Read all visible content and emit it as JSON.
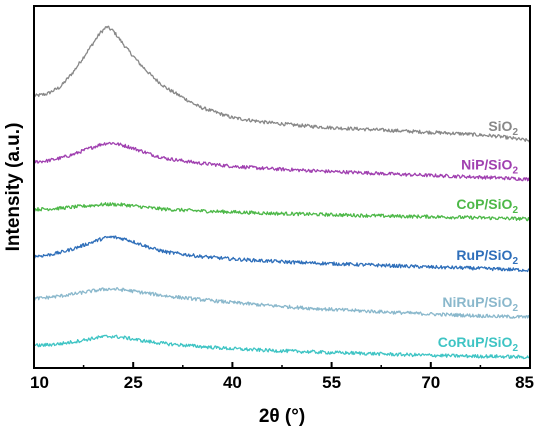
{
  "chart_data": {
    "type": "line",
    "xlabel": "2θ (°)",
    "ylabel": "Intensity (a.u.)",
    "xlim": [
      10,
      85
    ],
    "xticks": [
      10,
      25,
      40,
      55,
      70,
      85
    ],
    "yticks_shown": false,
    "grid": false,
    "legend": "inline-right",
    "stacked_offset": true,
    "x": [
      10,
      12,
      14,
      16,
      18,
      20,
      21,
      22,
      24,
      26,
      28,
      30,
      35,
      40,
      45,
      50,
      55,
      60,
      65,
      70,
      75,
      80,
      85
    ],
    "series": [
      {
        "name": "SiO2",
        "label_main": "SiO",
        "label_sub": "2",
        "color": "#888888",
        "values": [
          7.06,
          7.12,
          7.3,
          7.7,
          8.2,
          8.7,
          8.86,
          8.75,
          8.3,
          7.9,
          7.55,
          7.27,
          6.78,
          6.5,
          6.38,
          6.3,
          6.24,
          6.2,
          6.16,
          6.12,
          6.08,
          6.02,
          5.9
        ]
      },
      {
        "name": "NiP/SiO2",
        "label_main": "NiP/SiO",
        "label_sub": "2",
        "color": "#a040b0",
        "values": [
          5.35,
          5.38,
          5.45,
          5.55,
          5.68,
          5.8,
          5.84,
          5.84,
          5.76,
          5.65,
          5.53,
          5.44,
          5.32,
          5.24,
          5.18,
          5.14,
          5.1,
          5.07,
          5.03,
          5.0,
          4.97,
          4.94,
          4.9
        ]
      },
      {
        "name": "CoP/SiO2",
        "label_main": "CoP/SiO",
        "label_sub": "2",
        "color": "#4db848",
        "values": [
          4.12,
          4.13,
          4.15,
          4.18,
          4.21,
          4.24,
          4.25,
          4.25,
          4.23,
          4.19,
          4.15,
          4.12,
          4.08,
          4.05,
          4.02,
          4.0,
          3.98,
          3.96,
          3.94,
          3.93,
          3.91,
          3.89,
          3.87
        ]
      },
      {
        "name": "RuP/SiO2",
        "label_main": "RuP/SiO",
        "label_sub": "2",
        "color": "#2f6fba",
        "values": [
          2.9,
          2.93,
          3.0,
          3.1,
          3.22,
          3.34,
          3.39,
          3.4,
          3.34,
          3.22,
          3.1,
          3.01,
          2.9,
          2.83,
          2.78,
          2.74,
          2.71,
          2.68,
          2.65,
          2.62,
          2.6,
          2.57,
          2.54
        ]
      },
      {
        "name": "NiRuP/SiO2",
        "label_main": "NiRuP/SiO",
        "label_sub": "2",
        "color": "#8ab8cc",
        "values": [
          1.8,
          1.83,
          1.87,
          1.92,
          1.98,
          2.03,
          2.05,
          2.05,
          2.02,
          1.97,
          1.92,
          1.87,
          1.78,
          1.7,
          1.63,
          1.57,
          1.52,
          1.48,
          1.44,
          1.4,
          1.37,
          1.34,
          1.32
        ]
      },
      {
        "name": "CoRuP/SiO2",
        "label_main": "CoRuP/SiO",
        "label_sub": "2",
        "color": "#3ec4c4",
        "values": [
          0.58,
          0.6,
          0.63,
          0.68,
          0.74,
          0.8,
          0.82,
          0.82,
          0.78,
          0.72,
          0.67,
          0.63,
          0.56,
          0.5,
          0.46,
          0.43,
          0.4,
          0.38,
          0.35,
          0.33,
          0.31,
          0.3,
          0.28
        ]
      }
    ]
  }
}
